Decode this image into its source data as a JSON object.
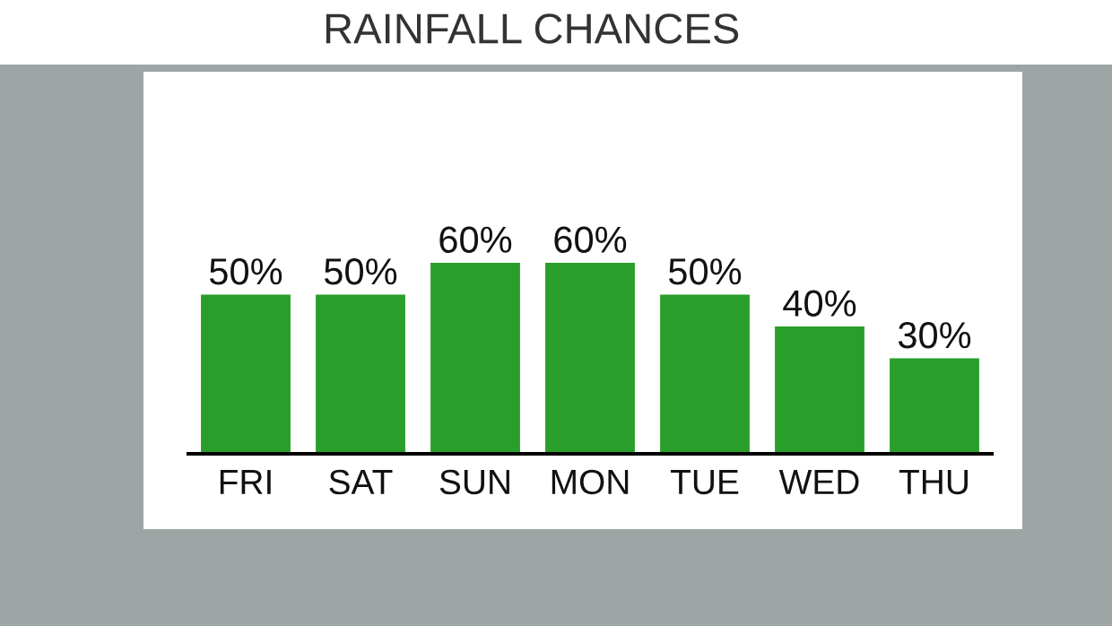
{
  "chart_data": {
    "type": "bar",
    "title": "RAINFALL CHANCES",
    "categories": [
      "FRI",
      "SAT",
      "SUN",
      "MON",
      "TUE",
      "WED",
      "THU"
    ],
    "values": [
      50,
      50,
      60,
      60,
      50,
      40,
      30
    ],
    "value_labels": [
      "50%",
      "50%",
      "60%",
      "60%",
      "50%",
      "40%",
      "30%"
    ],
    "color": "#2a9e2a",
    "grid": false,
    "legend": false
  }
}
